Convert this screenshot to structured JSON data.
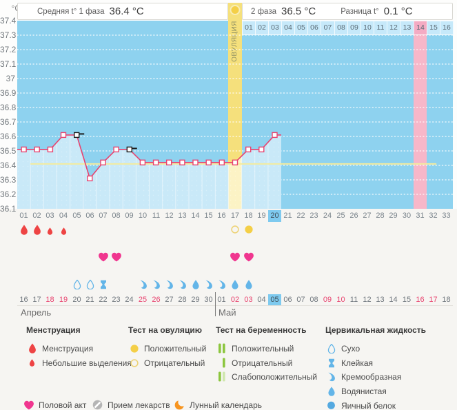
{
  "header": {
    "unit": "°C",
    "phase1_label": "Средняя t° 1 фаза",
    "phase1_value": "36.4 °C",
    "phase2_label": "2 фаза",
    "phase2_value": "36.5 °C",
    "diff_label": "Разница t°",
    "diff_value": "0.1 °C"
  },
  "chart_data": {
    "type": "line",
    "ylabel": "°C",
    "ylim": [
      36.1,
      37.4
    ],
    "ytick_step": 0.1,
    "yticks": [
      "37.4",
      "37.3",
      "37.2",
      "37.1",
      "37",
      "36.9",
      "36.8",
      "36.7",
      "36.6",
      "36.5",
      "36.4",
      "36.3",
      "36.2",
      "36.1"
    ],
    "x_days": 33,
    "series": [
      {
        "name": "Базальная температура",
        "days": [
          1,
          2,
          3,
          4,
          5,
          6,
          7,
          8,
          9,
          10,
          11,
          12,
          13,
          14,
          15,
          16,
          17,
          18,
          19,
          20
        ],
        "values": [
          36.51,
          36.51,
          36.51,
          36.61,
          36.61,
          36.31,
          36.42,
          36.51,
          36.51,
          36.42,
          36.42,
          36.42,
          36.42,
          36.42,
          36.42,
          36.42,
          36.42,
          36.51,
          36.51,
          36.61
        ]
      }
    ],
    "excluded_marker_days": [
      5,
      9
    ],
    "coverline": 36.41,
    "coverline_days": [
      2,
      32
    ],
    "ovulation_day": 17,
    "ovulation_label": "ОВУЛЯЦИЯ",
    "expected_period_day": 31,
    "current_day": 20,
    "dpo_labels": [
      "01",
      "02",
      "03",
      "04",
      "05",
      "06",
      "07",
      "08",
      "09",
      "10",
      "11",
      "12",
      "13",
      "14",
      "15",
      "16"
    ],
    "dpo_highlighted": "14",
    "day_labels": [
      "01",
      "02",
      "03",
      "04",
      "05",
      "06",
      "07",
      "08",
      "09",
      "10",
      "11",
      "12",
      "13",
      "14",
      "15",
      "16",
      "17",
      "18",
      "19",
      "20",
      "21",
      "22",
      "23",
      "24",
      "25",
      "26",
      "27",
      "28",
      "29",
      "30",
      "31",
      "32",
      "33"
    ]
  },
  "events": {
    "menstruation": [
      {
        "day": 1,
        "intensity": "heavy"
      },
      {
        "day": 2,
        "intensity": "heavy"
      },
      {
        "day": 3,
        "intensity": "light"
      },
      {
        "day": 4,
        "intensity": "light"
      }
    ],
    "ovulation_tests": [
      {
        "day": 17,
        "result": "negative"
      },
      {
        "day": 18,
        "result": "positive"
      }
    ],
    "intercourse": [
      7,
      8,
      17,
      18
    ],
    "cervical_fluid": [
      {
        "day": 5,
        "type": "dry"
      },
      {
        "day": 6,
        "type": "dry"
      },
      {
        "day": 7,
        "type": "sticky"
      },
      {
        "day": 10,
        "type": "creamy"
      },
      {
        "day": 11,
        "type": "creamy"
      },
      {
        "day": 12,
        "type": "creamy"
      },
      {
        "day": 13,
        "type": "creamy"
      },
      {
        "day": 14,
        "type": "watery"
      },
      {
        "day": 15,
        "type": "creamy"
      },
      {
        "day": 16,
        "type": "creamy"
      },
      {
        "day": 17,
        "type": "watery"
      },
      {
        "day": 18,
        "type": "watery"
      }
    ]
  },
  "calendar": {
    "dates": [
      "16",
      "17",
      "18",
      "19",
      "20",
      "21",
      "22",
      "23",
      "24",
      "25",
      "26",
      "27",
      "28",
      "29",
      "30",
      "01",
      "02",
      "03",
      "04",
      "05",
      "06",
      "07",
      "08",
      "09",
      "10",
      "11",
      "12",
      "13",
      "14",
      "15",
      "16",
      "17",
      "18"
    ],
    "weekend_indices": [
      2,
      3,
      9,
      10,
      16,
      17,
      23,
      24,
      30,
      31
    ],
    "today_index": 19,
    "month_break_index": 15,
    "months": [
      "Апрель",
      "Май"
    ]
  },
  "legend": {
    "sections": [
      {
        "title": "Менструация",
        "items": [
          {
            "icon": "menses-large",
            "label": "Менструация"
          },
          {
            "icon": "menses-small",
            "label": "Небольшие выделения"
          }
        ]
      },
      {
        "title": "Тест на овуляцию",
        "items": [
          {
            "icon": "ovtest-positive",
            "label": "Положительный"
          },
          {
            "icon": "ovtest-negative",
            "label": "Отрицательный"
          }
        ]
      },
      {
        "title": "Тест на беременность",
        "items": [
          {
            "icon": "pregtest-positive",
            "label": "Положительный"
          },
          {
            "icon": "pregtest-negative",
            "label": "Отрицательный"
          },
          {
            "icon": "pregtest-weak",
            "label": "Слабоположительный"
          }
        ]
      },
      {
        "title": "Цервикальная жидкость",
        "items": [
          {
            "icon": "cf-dry",
            "label": "Сухо"
          },
          {
            "icon": "cf-sticky",
            "label": "Клейкая"
          },
          {
            "icon": "cf-creamy",
            "label": "Кремообразная"
          },
          {
            "icon": "cf-watery",
            "label": "Водянистая"
          },
          {
            "icon": "cf-eggwhite",
            "label": "Яичный белок"
          }
        ]
      }
    ],
    "footer": [
      {
        "icon": "heart",
        "label": "Половой акт"
      },
      {
        "icon": "pill",
        "label": "Прием лекарств"
      },
      {
        "icon": "moon",
        "label": "Лунный календарь"
      }
    ]
  },
  "colors": {
    "chart_bg": "#8ed2ef",
    "chart_fill": "#c9e9f8",
    "fill_separator": "rgba(255,255,255,0.5)",
    "ovulation_band": "#f5e07c",
    "ovulation_band_fill": "#fcf3c5",
    "ovulation_label_color": "#8f9063",
    "period_band": "#f7b7c9",
    "dpo_cell": "#c6e9fa",
    "dpo_cell_highlight": "#f4abc3",
    "temp_line": "#e8436f",
    "marker_excluded": "#1c1c1c",
    "coverline": "#f3eb9e",
    "today_highlight": "#7ecaef",
    "menses_red": "#ee4444",
    "heart_pink": "#f0368f",
    "fluid_blue": "#63b5e8",
    "fluid_blue_dark": "#54a9e0",
    "test_yellow": "#f4cf47",
    "test_yellow_outline": "#edd377",
    "green": "#8cc63e",
    "green_pale": "#cfe7ac",
    "moon_orange": "#f7941e",
    "pill_gray": "#b5b5b5",
    "weekend_red": "#e8436f"
  }
}
